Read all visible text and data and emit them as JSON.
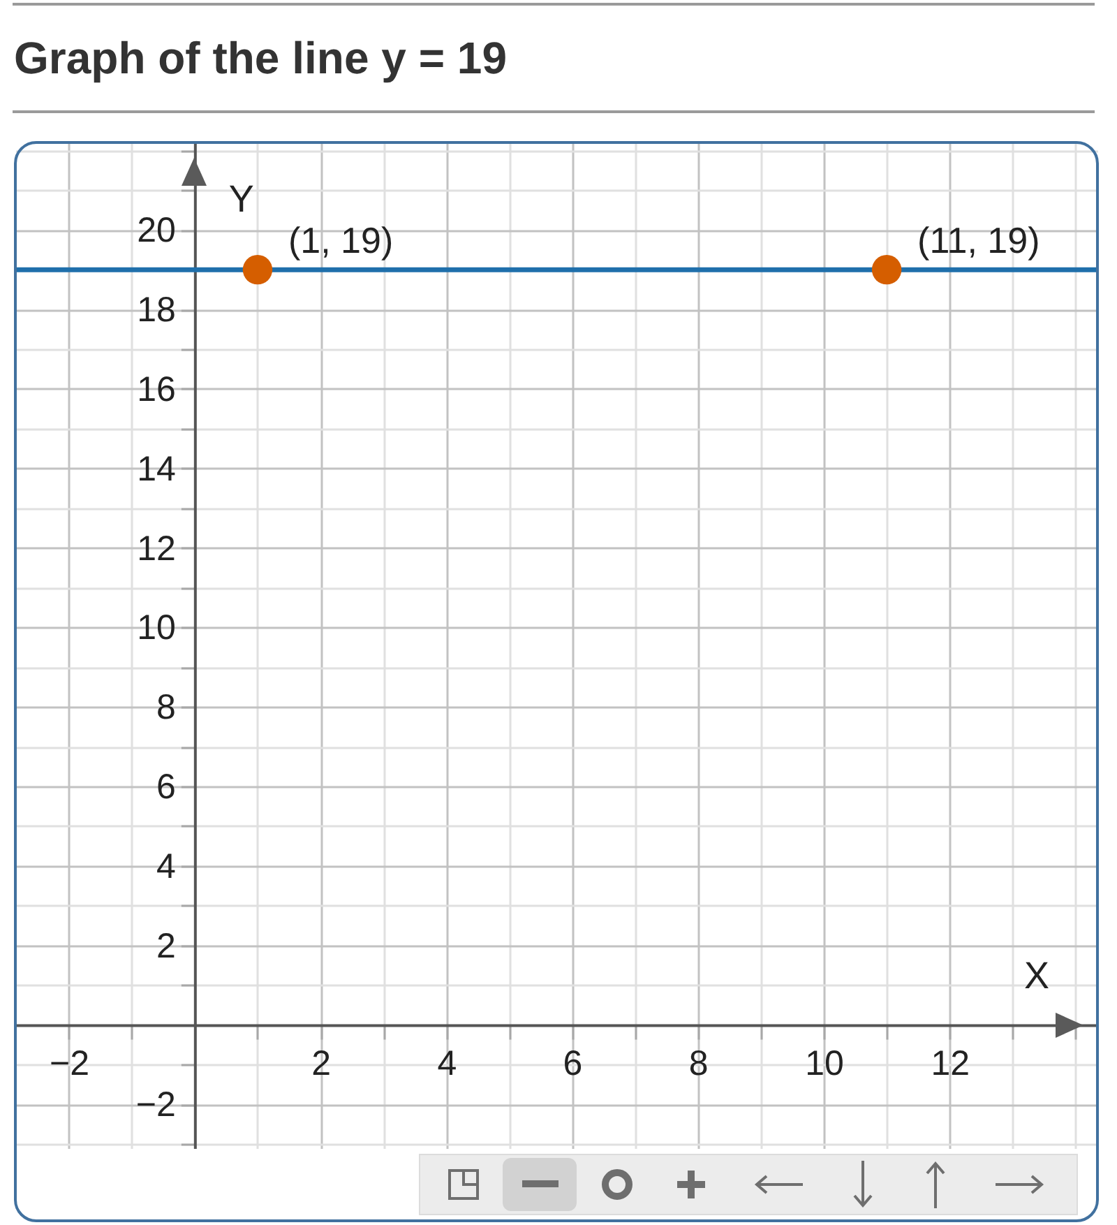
{
  "chart_data": {
    "type": "line",
    "title": "Graph of the line y = 19",
    "xlabel": "X",
    "ylabel": "Y",
    "series": [
      {
        "color": "#1f6fab",
        "x": [
          -2.85,
          14.35
        ],
        "values": [
          19,
          19
        ]
      },
      {
        "type": "scatter",
        "color": "#d55e00",
        "x": [
          1,
          11
        ],
        "values": [
          19,
          19
        ]
      }
    ],
    "annotations": [
      {
        "text": "(1, 19)",
        "x": 1,
        "y": 19
      },
      {
        "text": "(11, 19)",
        "x": 11,
        "y": 19
      }
    ],
    "xlim": [
      -2.85,
      14.35
    ],
    "ylim": [
      -3.1,
      22.2
    ],
    "xticks": [
      -2,
      {
        "value": -1,
        "label": null
      },
      {
        "value": 1,
        "label": null
      },
      2,
      {
        "value": 3,
        "label": null
      },
      4,
      {
        "value": 5,
        "label": null
      },
      6,
      {
        "value": 7,
        "label": null
      },
      8,
      {
        "value": 9,
        "label": null
      },
      10,
      {
        "value": 11,
        "label": null
      },
      12,
      {
        "value": 13,
        "label": null
      },
      {
        "value": 14,
        "label": null
      }
    ],
    "yticks": [
      {
        "value": -3,
        "label": null
      },
      -2,
      {
        "value": -1,
        "label": null
      },
      {
        "value": 1,
        "label": null
      },
      2,
      {
        "value": 3,
        "label": null
      },
      4,
      {
        "value": 5,
        "label": null
      },
      6,
      {
        "value": 7,
        "label": null
      },
      8,
      {
        "value": 9,
        "label": null
      },
      10,
      {
        "value": 11,
        "label": null
      },
      12,
      {
        "value": 13,
        "label": null
      },
      14,
      {
        "value": 15,
        "label": null
      },
      16,
      {
        "value": 17,
        "label": null
      },
      18,
      {
        "value": 19,
        "label": null
      },
      20,
      {
        "value": 21,
        "label": null
      },
      {
        "value": 22,
        "label": null
      }
    ],
    "grid": true
  }
}
